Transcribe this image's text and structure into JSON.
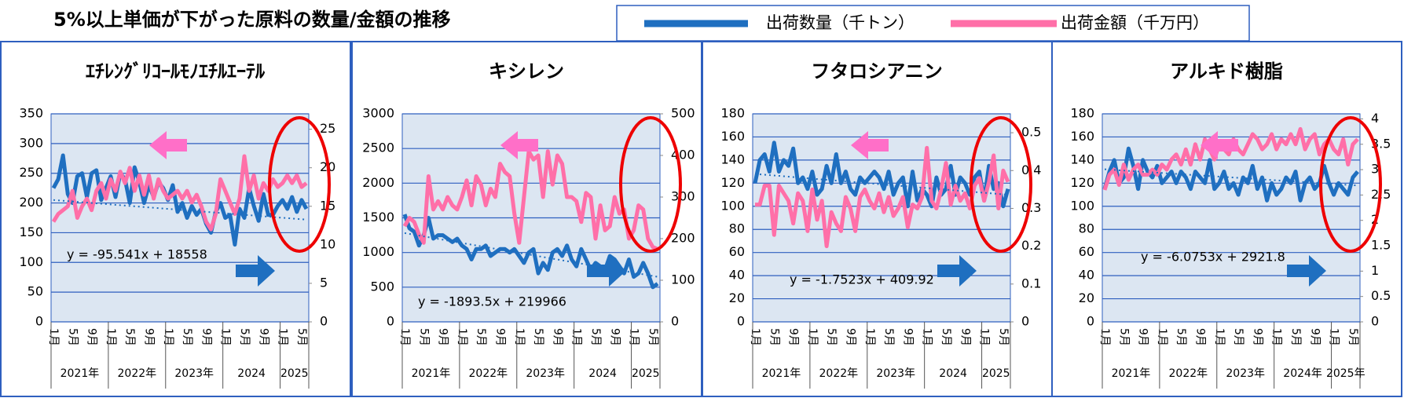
{
  "title": "5%以上単価が下がった原料の数量/金額の推移",
  "legend": [
    {
      "name": "出荷数量（千トン）",
      "color": "#1f6fc0"
    },
    {
      "name": "出荷金額（千万円）",
      "color": "#ff6fa8"
    }
  ],
  "chart_data": [
    {
      "type": "line",
      "title": "ｴﾁﾚﾝｸﾞﾘｺｰﾙﾓﾉｴﾁﾙｴｰﾃﾙ",
      "categories": [
        "1月",
        null,
        null,
        null,
        "5月",
        null,
        null,
        null,
        "9月",
        null,
        null,
        null,
        "1月",
        null,
        null,
        null,
        "5月",
        null,
        null,
        null,
        "9月",
        null,
        null,
        null,
        "1月",
        null,
        null,
        null,
        "5月",
        null,
        null,
        null,
        "9月",
        null,
        null,
        null,
        "1月",
        null,
        null,
        null,
        "5月",
        null,
        null,
        null,
        "9月",
        null,
        null,
        null,
        "1月",
        null,
        null,
        null,
        "5月",
        null
      ],
      "years": [
        "2021年",
        "2022年",
        "2023年",
        "2024",
        "2025"
      ],
      "ylim": [
        0,
        350
      ],
      "yticks": [
        0,
        50,
        100,
        150,
        200,
        250,
        300,
        350
      ],
      "y2lim": [
        0,
        27
      ],
      "y2ticks": [
        0,
        5,
        10,
        15,
        20,
        25
      ],
      "equation": "y = -95.541x + 18558",
      "trendline": [
        205,
        172
      ],
      "series": [
        {
          "color": "#1f6fc0",
          "values": [
            225,
            240,
            280,
            215,
            200,
            245,
            250,
            210,
            250,
            255,
            205,
            225,
            245,
            210,
            250,
            240,
            200,
            260,
            235,
            200,
            230,
            210,
            235,
            225,
            205,
            230,
            185,
            200,
            175,
            195,
            180,
            190,
            165,
            150,
            185,
            200,
            175,
            180,
            130,
            190,
            175,
            225,
            195,
            170,
            215,
            180,
            180,
            195,
            205,
            190,
            210,
            185,
            205,
            190
          ]
        },
        {
          "color": "#ff6fa8",
          "axis": "y2",
          "values": [
            13,
            14,
            14.5,
            15,
            17,
            13.5,
            15,
            16,
            14.5,
            17,
            18,
            16,
            18.5,
            17,
            19.5,
            18,
            20,
            17,
            19,
            16.5,
            19,
            16,
            18.5,
            17,
            16,
            16.5,
            17,
            16,
            17,
            15.5,
            16.5,
            15,
            13,
            12,
            14,
            18.5,
            17,
            15.5,
            14,
            16,
            21.5,
            17,
            19,
            16,
            18,
            17,
            18.5,
            17.5,
            18,
            19,
            18,
            19,
            17.5,
            18
          ]
        }
      ]
    },
    {
      "type": "line",
      "title": "キシレン",
      "categories": [
        "1月",
        null,
        null,
        null,
        "5月",
        null,
        null,
        null,
        "9月",
        null,
        null,
        null,
        "1月",
        null,
        null,
        null,
        "5月",
        null,
        null,
        null,
        "9月",
        null,
        null,
        null,
        "1月",
        null,
        null,
        null,
        "5月",
        null,
        null,
        null,
        "9月",
        null,
        null,
        null,
        "1月",
        null,
        null,
        null,
        "5月",
        null,
        null,
        null,
        "9月",
        null,
        null,
        null,
        "1月",
        null,
        null,
        null,
        "5月",
        null
      ],
      "years": [
        "2021年",
        "2022年",
        "2023年",
        "2024",
        "2025"
      ],
      "ylim": [
        0,
        3000
      ],
      "yticks": [
        0,
        500,
        1000,
        1500,
        2000,
        2500,
        3000
      ],
      "y2lim": [
        0,
        500
      ],
      "y2ticks": [
        0,
        100,
        200,
        300,
        400,
        500
      ],
      "equation": "y = -1893.5x + 219966",
      "trendline": [
        1280,
        650
      ],
      "series": [
        {
          "color": "#1f6fc0",
          "values": [
            1550,
            1350,
            1300,
            1100,
            1250,
            1500,
            1200,
            1250,
            1250,
            1200,
            1150,
            1200,
            1100,
            1050,
            900,
            1050,
            1050,
            1100,
            950,
            1000,
            1050,
            1050,
            1000,
            1050,
            950,
            850,
            1000,
            1050,
            700,
            850,
            750,
            1000,
            1050,
            950,
            1100,
            900,
            800,
            1050,
            900,
            750,
            850,
            800,
            750,
            950,
            900,
            800,
            700,
            900,
            650,
            700,
            850,
            700,
            500,
            550
          ]
        },
        {
          "color": "#ff6fa8",
          "axis": "y2",
          "values": [
            230,
            250,
            240,
            210,
            190,
            350,
            270,
            290,
            270,
            300,
            280,
            270,
            300,
            340,
            280,
            350,
            330,
            280,
            320,
            300,
            380,
            360,
            350,
            260,
            190,
            300,
            410,
            390,
            400,
            300,
            410,
            330,
            400,
            380,
            300,
            300,
            290,
            240,
            310,
            300,
            200,
            280,
            220,
            230,
            300,
            260,
            270,
            200,
            220,
            280,
            270,
            200,
            180,
            175
          ]
        }
      ]
    },
    {
      "type": "line",
      "title": "フタロシアニン",
      "categories": [
        "1月",
        null,
        null,
        null,
        "5月",
        null,
        null,
        null,
        "9月",
        null,
        null,
        null,
        "1月",
        null,
        null,
        null,
        "5月",
        null,
        null,
        null,
        "9月",
        null,
        null,
        null,
        "1月",
        null,
        null,
        null,
        "5月",
        null,
        null,
        null,
        "9月",
        null,
        null,
        null,
        "1月",
        null,
        null,
        null,
        "5月",
        null,
        null,
        null,
        "9月",
        null,
        null,
        null,
        "1月",
        null,
        null,
        null,
        "5月",
        null
      ],
      "years": [
        "2021年",
        "2022年",
        "2023年",
        "2024",
        "2025"
      ],
      "ylim": [
        0,
        180
      ],
      "yticks": [
        0,
        20,
        40,
        60,
        80,
        100,
        120,
        140,
        160,
        180
      ],
      "y2lim": [
        0,
        0.55
      ],
      "y2ticks": [
        0,
        0.1,
        0.2,
        0.3,
        0.4,
        0.5
      ],
      "equation": "y = -1.7523x + 409.92",
      "trendline": [
        128,
        110
      ],
      "series": [
        {
          "color": "#1f6fc0",
          "values": [
            120,
            140,
            145,
            130,
            155,
            130,
            140,
            135,
            150,
            120,
            125,
            115,
            130,
            110,
            115,
            135,
            120,
            145,
            120,
            130,
            115,
            110,
            125,
            120,
            125,
            130,
            125,
            115,
            130,
            110,
            120,
            125,
            100,
            130,
            105,
            115,
            110,
            100,
            125,
            110,
            115,
            135,
            110,
            125,
            120,
            110,
            125,
            130,
            105,
            135,
            115,
            120,
            100,
            115
          ]
        },
        {
          "color": "#ff6fa8",
          "axis": "y2",
          "values": [
            0.31,
            0.31,
            0.36,
            0.36,
            0.23,
            0.36,
            0.34,
            0.32,
            0.26,
            0.34,
            0.32,
            0.24,
            0.35,
            0.27,
            0.32,
            0.2,
            0.29,
            0.26,
            0.24,
            0.33,
            0.3,
            0.24,
            0.33,
            0.35,
            0.32,
            0.3,
            0.34,
            0.29,
            0.33,
            0.28,
            0.3,
            0.33,
            0.25,
            0.31,
            0.3,
            0.33,
            0.46,
            0.32,
            0.3,
            0.35,
            0.42,
            0.31,
            0.36,
            0.32,
            0.34,
            0.3,
            0.36,
            0.38,
            0.32,
            0.37,
            0.44,
            0.3,
            0.4,
            0.37
          ]
        }
      ]
    },
    {
      "type": "line",
      "title": "アルキド樹脂",
      "categories": [
        "1月",
        null,
        null,
        null,
        "5月",
        null,
        null,
        null,
        "9月",
        null,
        null,
        null,
        "1月",
        null,
        null,
        null,
        "5月",
        null,
        null,
        null,
        "9月",
        null,
        null,
        null,
        "1月",
        null,
        null,
        null,
        "5月",
        null,
        null,
        null,
        "9月",
        null,
        null,
        null,
        "1月",
        null,
        null,
        null,
        "5月",
        null,
        null,
        null,
        "9月",
        null,
        null,
        null,
        "1月",
        null,
        null,
        null,
        "5月",
        null
      ],
      "years": [
        "2021年",
        "2022年",
        "2023年",
        "2024年",
        "2025年"
      ],
      "ylim": [
        0,
        180
      ],
      "yticks": [
        0,
        20,
        40,
        60,
        80,
        100,
        120,
        140,
        160,
        180
      ],
      "y2lim": [
        0,
        4.1
      ],
      "y2ticks": [
        0,
        0.5,
        1,
        1.5,
        2,
        2.5,
        3,
        3.5,
        4
      ],
      "equation": "y = -6.0753x + 2921.8",
      "trendline": [
        132,
        118
      ],
      "series": [
        {
          "color": "#1f6fc0",
          "values": [
            115,
            130,
            140,
            120,
            125,
            150,
            135,
            115,
            140,
            130,
            125,
            135,
            120,
            125,
            130,
            120,
            130,
            125,
            115,
            130,
            125,
            120,
            140,
            115,
            120,
            130,
            115,
            120,
            110,
            125,
            120,
            135,
            115,
            125,
            105,
            120,
            110,
            115,
            125,
            120,
            130,
            105,
            120,
            125,
            115,
            120,
            135,
            120,
            110,
            120,
            115,
            110,
            125,
            130
          ]
        },
        {
          "color": "#ff6fa8",
          "axis": "y2",
          "values": [
            2.6,
            2.9,
            3,
            2.7,
            3.1,
            2.8,
            3,
            3.1,
            2.9,
            2.9,
            3,
            2.9,
            3.1,
            3,
            3.2,
            3.3,
            3.1,
            3.4,
            3.1,
            3.5,
            3.2,
            3.6,
            3.4,
            3.2,
            3.5,
            3.4,
            3.3,
            3.6,
            3.4,
            3.3,
            3.5,
            3.7,
            3.6,
            3.4,
            3.5,
            3.7,
            3.4,
            3.6,
            3.5,
            3.7,
            3.5,
            3.8,
            3.4,
            3.6,
            3.7,
            3.3,
            3.5,
            3.6,
            3.4,
            3.3,
            3.6,
            3.1,
            3.5,
            3.6
          ]
        }
      ]
    }
  ]
}
